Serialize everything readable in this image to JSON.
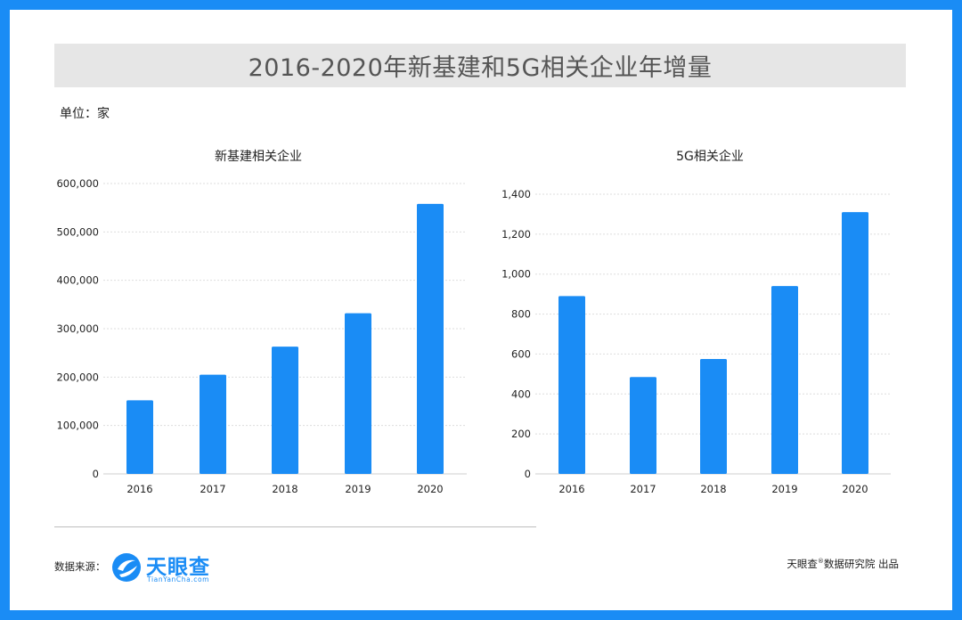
{
  "title": "2016-2020年新基建和5G相关企业年增量",
  "unit_label": "单位：家",
  "source_label": "数据来源：",
  "logo": {
    "name": "天眼查",
    "url": "TianYanCha.com"
  },
  "credit": {
    "brand": "天眼查",
    "reg_mark": "®",
    "rest": "数据研究院 出品"
  },
  "colors": {
    "bar": "#1a8cf5",
    "frame": "#1a8cf5",
    "title_bg": "#e6e6e6",
    "grid": "#dddddd"
  },
  "chart_data": [
    {
      "type": "bar",
      "title": "新基建相关企业",
      "categories": [
        "2016",
        "2017",
        "2018",
        "2019",
        "2020"
      ],
      "values": [
        152000,
        205000,
        263000,
        332000,
        558000
      ],
      "ylim": [
        0,
        600000
      ],
      "yticks": [
        0,
        100000,
        200000,
        300000,
        400000,
        500000,
        600000
      ],
      "ytick_labels": [
        "0",
        "100,000",
        "200,000",
        "300,000",
        "400,000",
        "500,000",
        "600,000"
      ],
      "grid": true,
      "xlabel": "",
      "ylabel": ""
    },
    {
      "type": "bar",
      "title": "5G相关企业",
      "categories": [
        "2016",
        "2017",
        "2018",
        "2019",
        "2020"
      ],
      "values": [
        890,
        485,
        575,
        940,
        1310
      ],
      "ylim": [
        0,
        1400
      ],
      "yticks": [
        0,
        200,
        400,
        600,
        800,
        1000,
        1200,
        1400
      ],
      "ytick_labels": [
        "0",
        "200",
        "400",
        "600",
        "800",
        "1,000",
        "1,200",
        "1,400"
      ],
      "grid": true,
      "xlabel": "",
      "ylabel": ""
    }
  ]
}
